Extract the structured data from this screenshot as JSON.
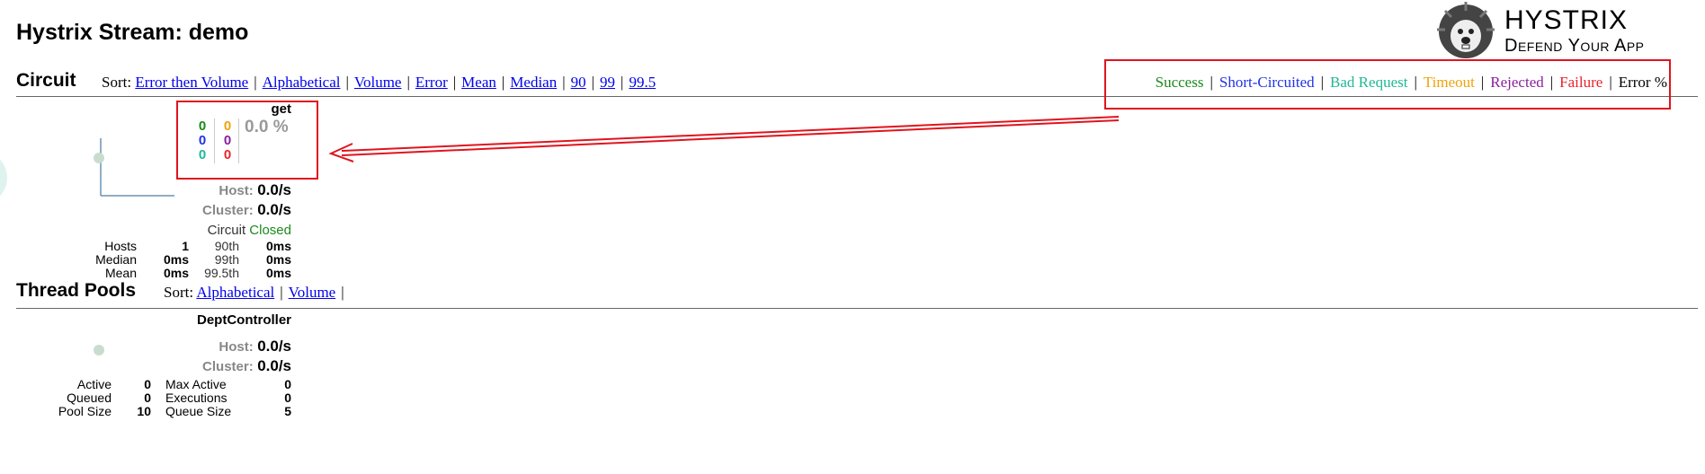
{
  "page": {
    "title": "Hystrix Stream: demo"
  },
  "logo": {
    "line1": "Hystrix",
    "line2": "Defend Your App",
    "icon": "hedgehog-logo-icon"
  },
  "circuit": {
    "title": "Circuit",
    "sort_label": "Sort:",
    "sort_options": [
      "Error then Volume",
      "Alphabetical",
      "Volume",
      "Error",
      "Mean",
      "Median",
      "90",
      "99",
      "99.5"
    ]
  },
  "legend": {
    "items": [
      {
        "label": "Success",
        "color": "#1b8a1b"
      },
      {
        "label": "Short-Circuited",
        "color": "#1f33e6"
      },
      {
        "label": "Bad Request",
        "color": "#1fb896"
      },
      {
        "label": "Timeout",
        "color": "#f0a20c"
      },
      {
        "label": "Rejected",
        "color": "#8a1f9e"
      },
      {
        "label": "Failure",
        "color": "#e8242b"
      },
      {
        "label": "Error %",
        "color": "#000000"
      }
    ]
  },
  "circuit_card": {
    "name": "get",
    "counts": {
      "success": "0",
      "short_circuited": "0",
      "bad_request": "0",
      "timeout": "0",
      "rejected": "0",
      "failure": "0"
    },
    "error_pct": "0.0 %",
    "host_label": "Host:",
    "host_rate": "0.0/s",
    "cluster_label": "Cluster:",
    "cluster_rate": "0.0/s",
    "circuit_label": "Circuit",
    "circuit_status": "Closed",
    "stats": {
      "hosts_label": "Hosts",
      "hosts_value": "1",
      "p90_label": "90th",
      "p90_value": "0ms",
      "median_label": "Median",
      "median_value": "0ms",
      "p99_label": "99th",
      "p99_value": "0ms",
      "mean_label": "Mean",
      "mean_value": "0ms",
      "p995_label": "99.5th",
      "p995_value": "0ms"
    }
  },
  "thread_pools": {
    "title": "Thread Pools",
    "sort_label": "Sort:",
    "sort_options": [
      "Alphabetical",
      "Volume"
    ]
  },
  "pool_card": {
    "name": "DeptController",
    "host_label": "Host:",
    "host_rate": "0.0/s",
    "cluster_label": "Cluster:",
    "cluster_rate": "0.0/s",
    "stats": {
      "active_label": "Active",
      "active_value": "0",
      "max_active_label": "Max Active",
      "max_active_value": "0",
      "queued_label": "Queued",
      "queued_value": "0",
      "executions_label": "Executions",
      "executions_value": "0",
      "pool_size_label": "Pool Size",
      "pool_size_value": "10",
      "queue_size_label": "Queue Size",
      "queue_size_value": "5"
    }
  },
  "colors": {
    "annotation": "#e0141e",
    "link": "#0000ee"
  }
}
